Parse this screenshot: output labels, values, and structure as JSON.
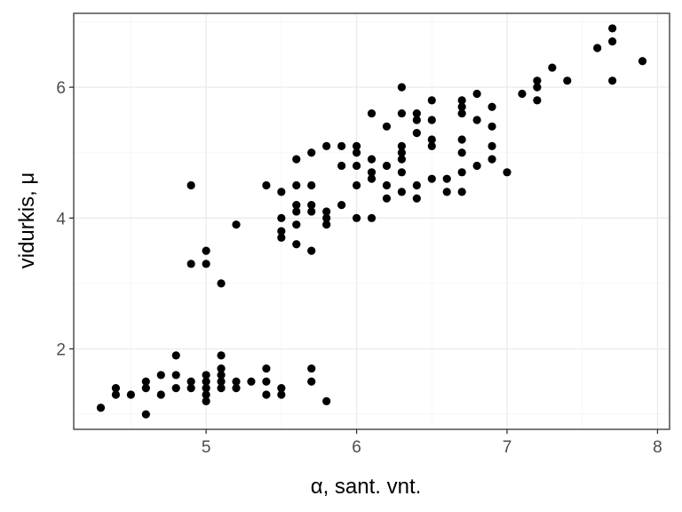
{
  "chart_data": {
    "type": "scatter",
    "title": "",
    "xlabel": "α, sant. vnt.",
    "ylabel": "vidurkis, μ",
    "xlim": [
      4.12,
      8.08
    ],
    "ylim": [
      0.77,
      7.13
    ],
    "xticks": [
      5,
      6,
      7,
      8
    ],
    "yticks": [
      2,
      4,
      6
    ],
    "grid": true,
    "legend": "none",
    "colors": {
      "point": "#000000",
      "grid": "#ebebeb",
      "border": "#333333",
      "tick_text": "#4d4d4d"
    },
    "points": [
      [
        4.3,
        1.1
      ],
      [
        4.4,
        1.3
      ],
      [
        4.4,
        1.4
      ],
      [
        4.5,
        1.3
      ],
      [
        4.6,
        1.0
      ],
      [
        4.6,
        1.4
      ],
      [
        4.6,
        1.5
      ],
      [
        4.7,
        1.3
      ],
      [
        4.7,
        1.6
      ],
      [
        4.8,
        1.4
      ],
      [
        4.8,
        1.6
      ],
      [
        4.8,
        1.9
      ],
      [
        4.9,
        1.4
      ],
      [
        4.9,
        1.5
      ],
      [
        4.9,
        3.3
      ],
      [
        4.9,
        4.5
      ],
      [
        5.0,
        1.2
      ],
      [
        5.0,
        1.3
      ],
      [
        5.0,
        1.4
      ],
      [
        5.0,
        1.5
      ],
      [
        5.0,
        1.6
      ],
      [
        5.0,
        3.3
      ],
      [
        5.0,
        3.5
      ],
      [
        5.1,
        1.4
      ],
      [
        5.1,
        1.5
      ],
      [
        5.1,
        1.6
      ],
      [
        5.1,
        1.7
      ],
      [
        5.1,
        1.9
      ],
      [
        5.1,
        3.0
      ],
      [
        5.2,
        1.4
      ],
      [
        5.2,
        1.5
      ],
      [
        5.2,
        3.9
      ],
      [
        5.3,
        1.5
      ],
      [
        5.4,
        1.3
      ],
      [
        5.4,
        1.5
      ],
      [
        5.4,
        1.7
      ],
      [
        5.4,
        4.5
      ],
      [
        5.5,
        1.3
      ],
      [
        5.5,
        1.4
      ],
      [
        5.5,
        3.7
      ],
      [
        5.5,
        3.8
      ],
      [
        5.5,
        4.0
      ],
      [
        5.5,
        4.4
      ],
      [
        5.6,
        3.6
      ],
      [
        5.6,
        3.9
      ],
      [
        5.6,
        4.1
      ],
      [
        5.6,
        4.2
      ],
      [
        5.6,
        4.5
      ],
      [
        5.6,
        4.9
      ],
      [
        5.7,
        1.5
      ],
      [
        5.7,
        1.7
      ],
      [
        5.7,
        3.5
      ],
      [
        5.7,
        4.1
      ],
      [
        5.7,
        4.2
      ],
      [
        5.7,
        4.5
      ],
      [
        5.7,
        5.0
      ],
      [
        5.8,
        1.2
      ],
      [
        5.8,
        3.9
      ],
      [
        5.8,
        4.0
      ],
      [
        5.8,
        4.1
      ],
      [
        5.8,
        5.1
      ],
      [
        5.9,
        4.2
      ],
      [
        5.9,
        4.8
      ],
      [
        5.9,
        5.1
      ],
      [
        6.0,
        4.0
      ],
      [
        6.0,
        4.5
      ],
      [
        6.0,
        4.8
      ],
      [
        6.0,
        5.0
      ],
      [
        6.0,
        5.1
      ],
      [
        6.1,
        4.0
      ],
      [
        6.1,
        4.6
      ],
      [
        6.1,
        4.7
      ],
      [
        6.1,
        4.9
      ],
      [
        6.1,
        5.6
      ],
      [
        6.2,
        4.3
      ],
      [
        6.2,
        4.5
      ],
      [
        6.2,
        4.8
      ],
      [
        6.2,
        5.4
      ],
      [
        6.3,
        4.4
      ],
      [
        6.3,
        4.7
      ],
      [
        6.3,
        4.9
      ],
      [
        6.3,
        5.0
      ],
      [
        6.3,
        5.1
      ],
      [
        6.3,
        5.6
      ],
      [
        6.3,
        6.0
      ],
      [
        6.4,
        4.3
      ],
      [
        6.4,
        4.5
      ],
      [
        6.4,
        5.3
      ],
      [
        6.4,
        5.5
      ],
      [
        6.4,
        5.6
      ],
      [
        6.5,
        4.6
      ],
      [
        6.5,
        5.1
      ],
      [
        6.5,
        5.2
      ],
      [
        6.5,
        5.5
      ],
      [
        6.5,
        5.8
      ],
      [
        6.6,
        4.4
      ],
      [
        6.6,
        4.6
      ],
      [
        6.7,
        4.4
      ],
      [
        6.7,
        4.7
      ],
      [
        6.7,
        5.0
      ],
      [
        6.7,
        5.2
      ],
      [
        6.7,
        5.6
      ],
      [
        6.7,
        5.7
      ],
      [
        6.7,
        5.8
      ],
      [
        6.8,
        4.8
      ],
      [
        6.8,
        5.5
      ],
      [
        6.8,
        5.9
      ],
      [
        6.9,
        4.9
      ],
      [
        6.9,
        5.1
      ],
      [
        6.9,
        5.4
      ],
      [
        6.9,
        5.7
      ],
      [
        7.0,
        4.7
      ],
      [
        7.1,
        5.9
      ],
      [
        7.2,
        5.8
      ],
      [
        7.2,
        6.0
      ],
      [
        7.2,
        6.1
      ],
      [
        7.3,
        6.3
      ],
      [
        7.4,
        6.1
      ],
      [
        7.6,
        6.6
      ],
      [
        7.7,
        6.1
      ],
      [
        7.7,
        6.7
      ],
      [
        7.7,
        6.9
      ],
      [
        7.9,
        6.4
      ]
    ]
  }
}
